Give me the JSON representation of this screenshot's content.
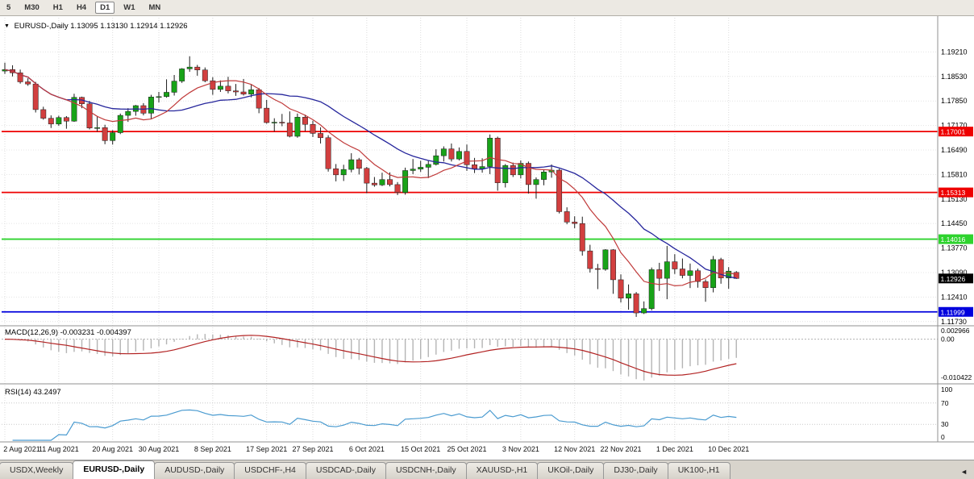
{
  "toolbar": {
    "timeframes": [
      {
        "label": "5",
        "active": false
      },
      {
        "label": "M30",
        "active": false
      },
      {
        "label": "H1",
        "active": false
      },
      {
        "label": "H4",
        "active": false
      },
      {
        "label": "D1",
        "active": true
      },
      {
        "label": "W1",
        "active": false
      },
      {
        "label": "MN",
        "active": false
      }
    ]
  },
  "main_chart": {
    "symbol": "EURUSD-,Daily",
    "ohlc_text": "1.13095 1.13130 1.12914 1.12926",
    "menu_icon": "▼",
    "price_axis": [
      "1.19210",
      "1.18530",
      "1.17850",
      "1.17170",
      "1.16490",
      "1.15810",
      "1.15130",
      "1.14450",
      "1.13770",
      "1.13090",
      "1.12410",
      "1.11730"
    ],
    "current_price": {
      "label": "1.12926",
      "color": "#000000"
    },
    "hlines": [
      {
        "label": "1.17001",
        "value": 1.17001,
        "color": "#ee0000"
      },
      {
        "label": "1.15313",
        "value": 1.15313,
        "color": "#ee0000"
      },
      {
        "label": "1.14016",
        "value": 1.14016,
        "color": "#2ed32e"
      },
      {
        "label": "1.11999",
        "value": 1.11999,
        "color": "#0000dd"
      }
    ],
    "colors": {
      "up": "#18a318",
      "down": "#d23f3f",
      "outline": "#1c1c1c"
    },
    "ma_fast_color": "#c03a3a",
    "ma_slow_color": "#26269c",
    "date_axis": [
      "2 Aug 2021",
      "11 Aug 2021",
      "20 Aug 2021",
      "30 Aug 2021",
      "8 Sep 2021",
      "17 Sep 2021",
      "27 Sep 2021",
      "6 Oct 2021",
      "15 Oct 2021",
      "25 Oct 2021",
      "3 Nov 2021",
      "12 Nov 2021",
      "22 Nov 2021",
      "1 Dec 2021",
      "10 Dec 2021"
    ]
  },
  "macd_panel": {
    "label": "MACD(12,26,9) -0.003231 -0.004397",
    "axis": [
      "0.002966",
      "0.00",
      "-0.010422"
    ],
    "histogram_color": "#b4b4b4",
    "signal_color": "#b22222"
  },
  "rsi_panel": {
    "label": "RSI(14) 43.2497",
    "axis": [
      "100",
      "70",
      "30",
      "0"
    ],
    "levels": [
      70,
      30
    ],
    "line_color": "#4a9bd0"
  },
  "tabs": {
    "scroll_icon": "◄",
    "items": [
      {
        "label": "USDX,Weekly",
        "active": false
      },
      {
        "label": "EURUSD-,Daily",
        "active": true
      },
      {
        "label": "AUDUSD-,Daily",
        "active": false
      },
      {
        "label": "USDCHF-,H4",
        "active": false
      },
      {
        "label": "USDCAD-,Daily",
        "active": false
      },
      {
        "label": "USDCNH-,Daily",
        "active": false
      },
      {
        "label": "XAUUSD-,H1",
        "active": false
      },
      {
        "label": "UKOil-,Daily",
        "active": false
      },
      {
        "label": "DJ30-,Daily",
        "active": false
      },
      {
        "label": "UK100-,H1",
        "active": false
      }
    ]
  },
  "chart_data": {
    "type": "candlestick",
    "symbol": "EURUSD",
    "timeframe": "Daily",
    "visible_price_range": [
      1.11658,
      1.20024
    ],
    "indicators": [
      {
        "name": "MACD",
        "params": "12,26,9",
        "values": [
          "-0.003231",
          "-0.004397"
        ],
        "axis_range": [
          -0.010422,
          0.002966
        ]
      },
      {
        "name": "RSI",
        "params": "14",
        "value": "43.2497",
        "axis": [
          0,
          100
        ],
        "levels": [
          30,
          70
        ]
      }
    ],
    "candles": [
      [
        "2 Aug 2021",
        1.1868,
        1.1891,
        1.186,
        1.1872
      ],
      [
        "3 Aug 2021",
        1.1872,
        1.1884,
        1.1853,
        1.1863
      ],
      [
        "4 Aug 2021",
        1.1863,
        1.1872,
        1.1833,
        1.1838
      ],
      [
        "5 Aug 2021",
        1.1838,
        1.1848,
        1.1827,
        1.1832
      ],
      [
        "6 Aug 2021",
        1.1832,
        1.1838,
        1.1753,
        1.1761
      ],
      [
        "9 Aug 2021",
        1.1761,
        1.1769,
        1.1733,
        1.1737
      ],
      [
        "10 Aug 2021",
        1.1737,
        1.1745,
        1.171,
        1.1721
      ],
      [
        "11 Aug 2021",
        1.1721,
        1.1744,
        1.1716,
        1.1739
      ],
      [
        "12 Aug 2021",
        1.1739,
        1.1743,
        1.1708,
        1.1729
      ],
      [
        "13 Aug 2021",
        1.1729,
        1.1805,
        1.1727,
        1.1795
      ],
      [
        "16 Aug 2021",
        1.1795,
        1.1797,
        1.1765,
        1.1777
      ],
      [
        "17 Aug 2021",
        1.1777,
        1.1785,
        1.1706,
        1.171
      ],
      [
        "18 Aug 2021",
        1.171,
        1.1742,
        1.17,
        1.1711
      ],
      [
        "19 Aug 2021",
        1.1711,
        1.1719,
        1.1665,
        1.1675
      ],
      [
        "20 Aug 2021",
        1.1675,
        1.1704,
        1.1664,
        1.1697
      ],
      [
        "23 Aug 2021",
        1.1697,
        1.175,
        1.1693,
        1.1745
      ],
      [
        "24 Aug 2021",
        1.1745,
        1.1765,
        1.1727,
        1.1756
      ],
      [
        "25 Aug 2021",
        1.1756,
        1.1774,
        1.1744,
        1.1772
      ],
      [
        "26 Aug 2021",
        1.1772,
        1.1779,
        1.1745,
        1.1751
      ],
      [
        "27 Aug 2021",
        1.1751,
        1.1802,
        1.1735,
        1.1796
      ],
      [
        "30 Aug 2021",
        1.1796,
        1.181,
        1.1781,
        1.1797
      ],
      [
        "31 Aug 2021",
        1.1797,
        1.1845,
        1.1794,
        1.1809
      ],
      [
        "1 Sep 2021",
        1.1809,
        1.1857,
        1.18,
        1.184
      ],
      [
        "2 Sep 2021",
        1.184,
        1.1876,
        1.1835,
        1.1874
      ],
      [
        "3 Sep 2021",
        1.1874,
        1.1909,
        1.1866,
        1.1879
      ],
      [
        "6 Sep 2021",
        1.1879,
        1.1885,
        1.1855,
        1.1871
      ],
      [
        "7 Sep 2021",
        1.1871,
        1.1878,
        1.1837,
        1.1841
      ],
      [
        "8 Sep 2021",
        1.1841,
        1.1851,
        1.1802,
        1.1817
      ],
      [
        "9 Sep 2021",
        1.1817,
        1.1842,
        1.181,
        1.1826
      ],
      [
        "10 Sep 2021",
        1.1826,
        1.1852,
        1.1806,
        1.1813
      ],
      [
        "13 Sep 2021",
        1.1813,
        1.1832,
        1.1799,
        1.181
      ],
      [
        "14 Sep 2021",
        1.181,
        1.1846,
        1.18,
        1.1804
      ],
      [
        "15 Sep 2021",
        1.1804,
        1.1831,
        1.1795,
        1.1816
      ],
      [
        "16 Sep 2021",
        1.1816,
        1.1821,
        1.1751,
        1.1765
      ],
      [
        "17 Sep 2021",
        1.1765,
        1.1788,
        1.1722,
        1.1725
      ],
      [
        "20 Sep 2021",
        1.1725,
        1.1737,
        1.17,
        1.1726
      ],
      [
        "21 Sep 2021",
        1.1726,
        1.1749,
        1.1715,
        1.1724
      ],
      [
        "22 Sep 2021",
        1.1724,
        1.1756,
        1.1684,
        1.1687
      ],
      [
        "23 Sep 2021",
        1.1687,
        1.175,
        1.1683,
        1.174
      ],
      [
        "24 Sep 2021",
        1.174,
        1.1747,
        1.1701,
        1.172
      ],
      [
        "27 Sep 2021",
        1.172,
        1.173,
        1.1685,
        1.1695
      ],
      [
        "28 Sep 2021",
        1.1695,
        1.1712,
        1.1667,
        1.1683
      ],
      [
        "29 Sep 2021",
        1.1683,
        1.169,
        1.1589,
        1.1597
      ],
      [
        "30 Sep 2021",
        1.1597,
        1.161,
        1.1562,
        1.158
      ],
      [
        "1 Oct 2021",
        1.158,
        1.1608,
        1.1563,
        1.1595
      ],
      [
        "4 Oct 2021",
        1.1595,
        1.164,
        1.1587,
        1.1622
      ],
      [
        "5 Oct 2021",
        1.1622,
        1.1627,
        1.1581,
        1.1598
      ],
      [
        "6 Oct 2021",
        1.1598,
        1.1602,
        1.1529,
        1.1557
      ],
      [
        "7 Oct 2021",
        1.1557,
        1.1574,
        1.1547,
        1.1552
      ],
      [
        "8 Oct 2021",
        1.1552,
        1.1586,
        1.1549,
        1.1567
      ],
      [
        "11 Oct 2021",
        1.1567,
        1.1587,
        1.1548,
        1.1553
      ],
      [
        "12 Oct 2021",
        1.1553,
        1.156,
        1.1524,
        1.1531
      ],
      [
        "13 Oct 2021",
        1.1531,
        1.16,
        1.1525,
        1.1592
      ],
      [
        "14 Oct 2021",
        1.1592,
        1.1624,
        1.1582,
        1.1596
      ],
      [
        "15 Oct 2021",
        1.1596,
        1.1619,
        1.1588,
        1.1601
      ],
      [
        "18 Oct 2021",
        1.1601,
        1.1621,
        1.1571,
        1.1609
      ],
      [
        "19 Oct 2021",
        1.1609,
        1.1651,
        1.1606,
        1.1633
      ],
      [
        "20 Oct 2021",
        1.1633,
        1.1659,
        1.1617,
        1.1652
      ],
      [
        "21 Oct 2021",
        1.1652,
        1.1667,
        1.1617,
        1.1624
      ],
      [
        "22 Oct 2021",
        1.1624,
        1.1656,
        1.162,
        1.1645
      ],
      [
        "25 Oct 2021",
        1.1645,
        1.1664,
        1.1591,
        1.1608
      ],
      [
        "26 Oct 2021",
        1.1608,
        1.1627,
        1.1585,
        1.1597
      ],
      [
        "27 Oct 2021",
        1.1597,
        1.1626,
        1.1586,
        1.1603
      ],
      [
        "28 Oct 2021",
        1.1603,
        1.1692,
        1.1582,
        1.1682
      ],
      [
        "29 Oct 2021",
        1.1682,
        1.1686,
        1.1536,
        1.1558
      ],
      [
        "1 Nov 2021",
        1.1558,
        1.161,
        1.1545,
        1.1606
      ],
      [
        "2 Nov 2021",
        1.1606,
        1.1614,
        1.1574,
        1.158
      ],
      [
        "3 Nov 2021",
        1.158,
        1.162,
        1.157,
        1.1612
      ],
      [
        "4 Nov 2021",
        1.1612,
        1.1617,
        1.1528,
        1.1553
      ],
      [
        "5 Nov 2021",
        1.1553,
        1.1573,
        1.1514,
        1.1567
      ],
      [
        "8 Nov 2021",
        1.1567,
        1.1595,
        1.1551,
        1.1588
      ],
      [
        "9 Nov 2021",
        1.1588,
        1.1609,
        1.1572,
        1.1593
      ],
      [
        "10 Nov 2021",
        1.1593,
        1.1597,
        1.1473,
        1.1478
      ],
      [
        "11 Nov 2021",
        1.1478,
        1.149,
        1.1443,
        1.1449
      ],
      [
        "12 Nov 2021",
        1.1449,
        1.1465,
        1.1432,
        1.1445
      ],
      [
        "15 Nov 2021",
        1.1445,
        1.1464,
        1.1356,
        1.1369
      ],
      [
        "16 Nov 2021",
        1.1369,
        1.1386,
        1.1309,
        1.132
      ],
      [
        "17 Nov 2021",
        1.132,
        1.1333,
        1.1263,
        1.1318
      ],
      [
        "18 Nov 2021",
        1.1318,
        1.1374,
        1.1314,
        1.1372
      ],
      [
        "19 Nov 2021",
        1.1372,
        1.1374,
        1.125,
        1.1289
      ],
      [
        "22 Nov 2021",
        1.1289,
        1.1304,
        1.1226,
        1.1238
      ],
      [
        "23 Nov 2021",
        1.1238,
        1.1276,
        1.1206,
        1.125
      ],
      [
        "24 Nov 2021",
        1.125,
        1.1255,
        1.1186,
        1.1197
      ],
      [
        "25 Nov 2021",
        1.1197,
        1.1229,
        1.1194,
        1.1209
      ],
      [
        "26 Nov 2021",
        1.1209,
        1.1323,
        1.1204,
        1.1317
      ],
      [
        "29 Nov 2021",
        1.1317,
        1.1336,
        1.1258,
        1.1293
      ],
      [
        "30 Nov 2021",
        1.1293,
        1.1383,
        1.1235,
        1.1339
      ],
      [
        "1 Dec 2021",
        1.1339,
        1.136,
        1.1305,
        1.1319
      ],
      [
        "2 Dec 2021",
        1.1319,
        1.1348,
        1.1293,
        1.1301
      ],
      [
        "3 Dec 2021",
        1.1301,
        1.1334,
        1.1266,
        1.1314
      ],
      [
        "6 Dec 2021",
        1.1314,
        1.132,
        1.1267,
        1.1284
      ],
      [
        "7 Dec 2021",
        1.1284,
        1.129,
        1.1228,
        1.1267
      ],
      [
        "8 Dec 2021",
        1.1267,
        1.1355,
        1.1254,
        1.1345
      ],
      [
        "9 Dec 2021",
        1.1345,
        1.135,
        1.1278,
        1.1294
      ],
      [
        "10 Dec 2021",
        1.1294,
        1.1324,
        1.1264,
        1.1313
      ],
      [
        "13 Dec 2021",
        1.13095,
        1.1313,
        1.12914,
        1.12926
      ]
    ]
  }
}
